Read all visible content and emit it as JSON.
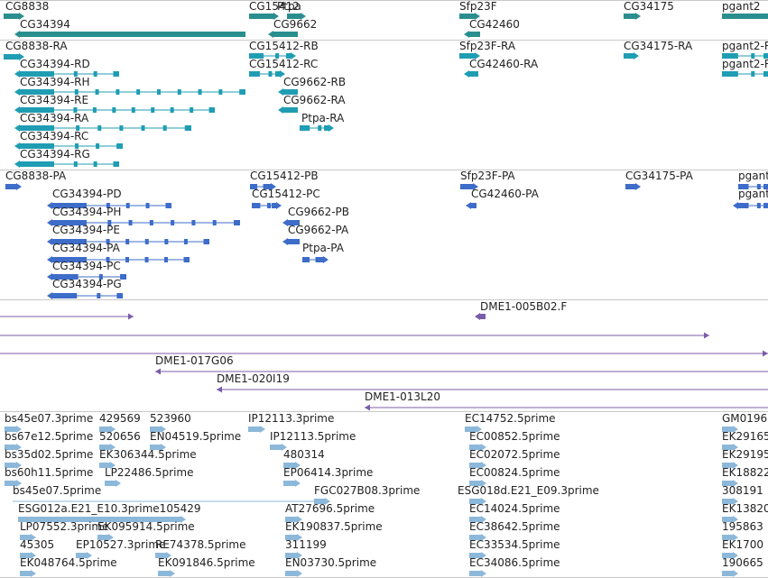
{
  "colors": {
    "gene": "#2a8e8e",
    "transcript": "#1f9db3",
    "protein": "#3d6cc9",
    "clone": "#7b5ca8",
    "est": "#8cb8da",
    "separator": "#c9c9c9"
  },
  "tracks": [
    {
      "name": "gene-track",
      "color": "gene",
      "features": [
        {
          "label": "CG8838",
          "dir": "+"
        },
        {
          "label": "CG34394",
          "dir": "-"
        },
        {
          "label": "CG15412",
          "dir": "+"
        },
        {
          "label": "Ptpa",
          "dir": "+"
        },
        {
          "label": "CG9662",
          "dir": "-"
        },
        {
          "label": "Sfp23F",
          "dir": "+"
        },
        {
          "label": "CG42460",
          "dir": "-"
        },
        {
          "label": "CG34175",
          "dir": "+"
        },
        {
          "label": "pgant2",
          "dir": "+"
        }
      ]
    },
    {
      "name": "transcript-track",
      "color": "transcript",
      "features": [
        {
          "label": "CG8838-RA",
          "dir": "+"
        },
        {
          "label": "CG34394-RD",
          "dir": "-"
        },
        {
          "label": "CG34394-RH",
          "dir": "-"
        },
        {
          "label": "CG34394-RE",
          "dir": "-"
        },
        {
          "label": "CG34394-RA",
          "dir": "-"
        },
        {
          "label": "CG34394-RC",
          "dir": "-"
        },
        {
          "label": "CG34394-RG",
          "dir": "-"
        },
        {
          "label": "CG15412-RB",
          "dir": "+"
        },
        {
          "label": "CG15412-RC",
          "dir": "+"
        },
        {
          "label": "CG9662-RB",
          "dir": "-"
        },
        {
          "label": "CG9662-RA",
          "dir": "-"
        },
        {
          "label": "Ptpa-RA",
          "dir": "+"
        },
        {
          "label": "Sfp23F-RA",
          "dir": "+"
        },
        {
          "label": "CG42460-RA",
          "dir": "-"
        },
        {
          "label": "CG34175-RA",
          "dir": "+"
        },
        {
          "label": "pgant2-R",
          "dir": "+"
        },
        {
          "label": "pgant2-R",
          "dir": "+"
        }
      ]
    },
    {
      "name": "protein-track",
      "color": "protein",
      "features": [
        {
          "label": "CG8838-PA",
          "dir": "+"
        },
        {
          "label": "CG34394-PD",
          "dir": "-"
        },
        {
          "label": "CG34394-PH",
          "dir": "-"
        },
        {
          "label": "CG34394-PE",
          "dir": "-"
        },
        {
          "label": "CG34394-PA",
          "dir": "-"
        },
        {
          "label": "CG34394-PC",
          "dir": "-"
        },
        {
          "label": "CG34394-PG",
          "dir": "-"
        },
        {
          "label": "CG15412-PB",
          "dir": "+"
        },
        {
          "label": "CG15412-PC",
          "dir": "+"
        },
        {
          "label": "CG9662-PB",
          "dir": "-"
        },
        {
          "label": "CG9662-PA",
          "dir": "-"
        },
        {
          "label": "Ptpa-PA",
          "dir": "+"
        },
        {
          "label": "Sfp23F-PA",
          "dir": "+"
        },
        {
          "label": "CG42460-PA",
          "dir": "-"
        },
        {
          "label": "CG34175-PA",
          "dir": "+"
        },
        {
          "label": "pgant",
          "dir": "+"
        },
        {
          "label": "pgant",
          "dir": "-"
        }
      ]
    },
    {
      "name": "clone-track",
      "color": "clone",
      "features": [
        {
          "label": "",
          "dir": "+"
        },
        {
          "label": "DME1-005B02.F",
          "dir": "-"
        },
        {
          "label": "",
          "dir": "+"
        },
        {
          "label": "",
          "dir": "+"
        },
        {
          "label": "DME1-017G06",
          "dir": "-"
        },
        {
          "label": "DME1-020I19",
          "dir": "-"
        },
        {
          "label": "DME1-013L20",
          "dir": "-"
        }
      ]
    },
    {
      "name": "est-track",
      "color": "est",
      "features": [
        {
          "label": "bs45e07.3prime"
        },
        {
          "label": "429569"
        },
        {
          "label": "523960"
        },
        {
          "label": "IP12113.3prime"
        },
        {
          "label": "EC14752.5prime"
        },
        {
          "label": "GM0196"
        },
        {
          "label": "bs67e12.5prime"
        },
        {
          "label": "520656"
        },
        {
          "label": "EN04519.5prime"
        },
        {
          "label": "IP12113.5prime"
        },
        {
          "label": "EC00852.5prime"
        },
        {
          "label": "EK29165"
        },
        {
          "label": "bs35d02.5prime"
        },
        {
          "label": "EK306344.5prime"
        },
        {
          "label": "480314"
        },
        {
          "label": "EC02072.5prime"
        },
        {
          "label": "EK29195"
        },
        {
          "label": "bs60h11.5prime"
        },
        {
          "label": "LP22486.5prime"
        },
        {
          "label": "EP06414.3prime"
        },
        {
          "label": "EC00824.5prime"
        },
        {
          "label": "EK18822"
        },
        {
          "label": "bs45e07.5prime"
        },
        {
          "label": "FGC027B08.3prime"
        },
        {
          "label": "ESG018d.E21_E09.3prime"
        },
        {
          "label": "308191"
        },
        {
          "label": "ESG012a.E21_E10.3prime105429"
        },
        {
          "label": "AT27696.5prime"
        },
        {
          "label": "EC14024.5prime"
        },
        {
          "label": "EK13820"
        },
        {
          "label": "LP07552.3prime"
        },
        {
          "label": "EK095914.5prime"
        },
        {
          "label": "EK190837.5prime"
        },
        {
          "label": "EC38642.5prime"
        },
        {
          "label": "195863"
        },
        {
          "label": "45305"
        },
        {
          "label": "EP10527.3prime"
        },
        {
          "label": "RE74378.5prime"
        },
        {
          "label": "311199"
        },
        {
          "label": "EC33534.5prime"
        },
        {
          "label": "EK1700"
        },
        {
          "label": "EK048764.5prime"
        },
        {
          "label": "EK091846.5prime"
        },
        {
          "label": "EN03730.5prime"
        },
        {
          "label": "EC34086.5prime"
        },
        {
          "label": "190665"
        }
      ]
    }
  ]
}
